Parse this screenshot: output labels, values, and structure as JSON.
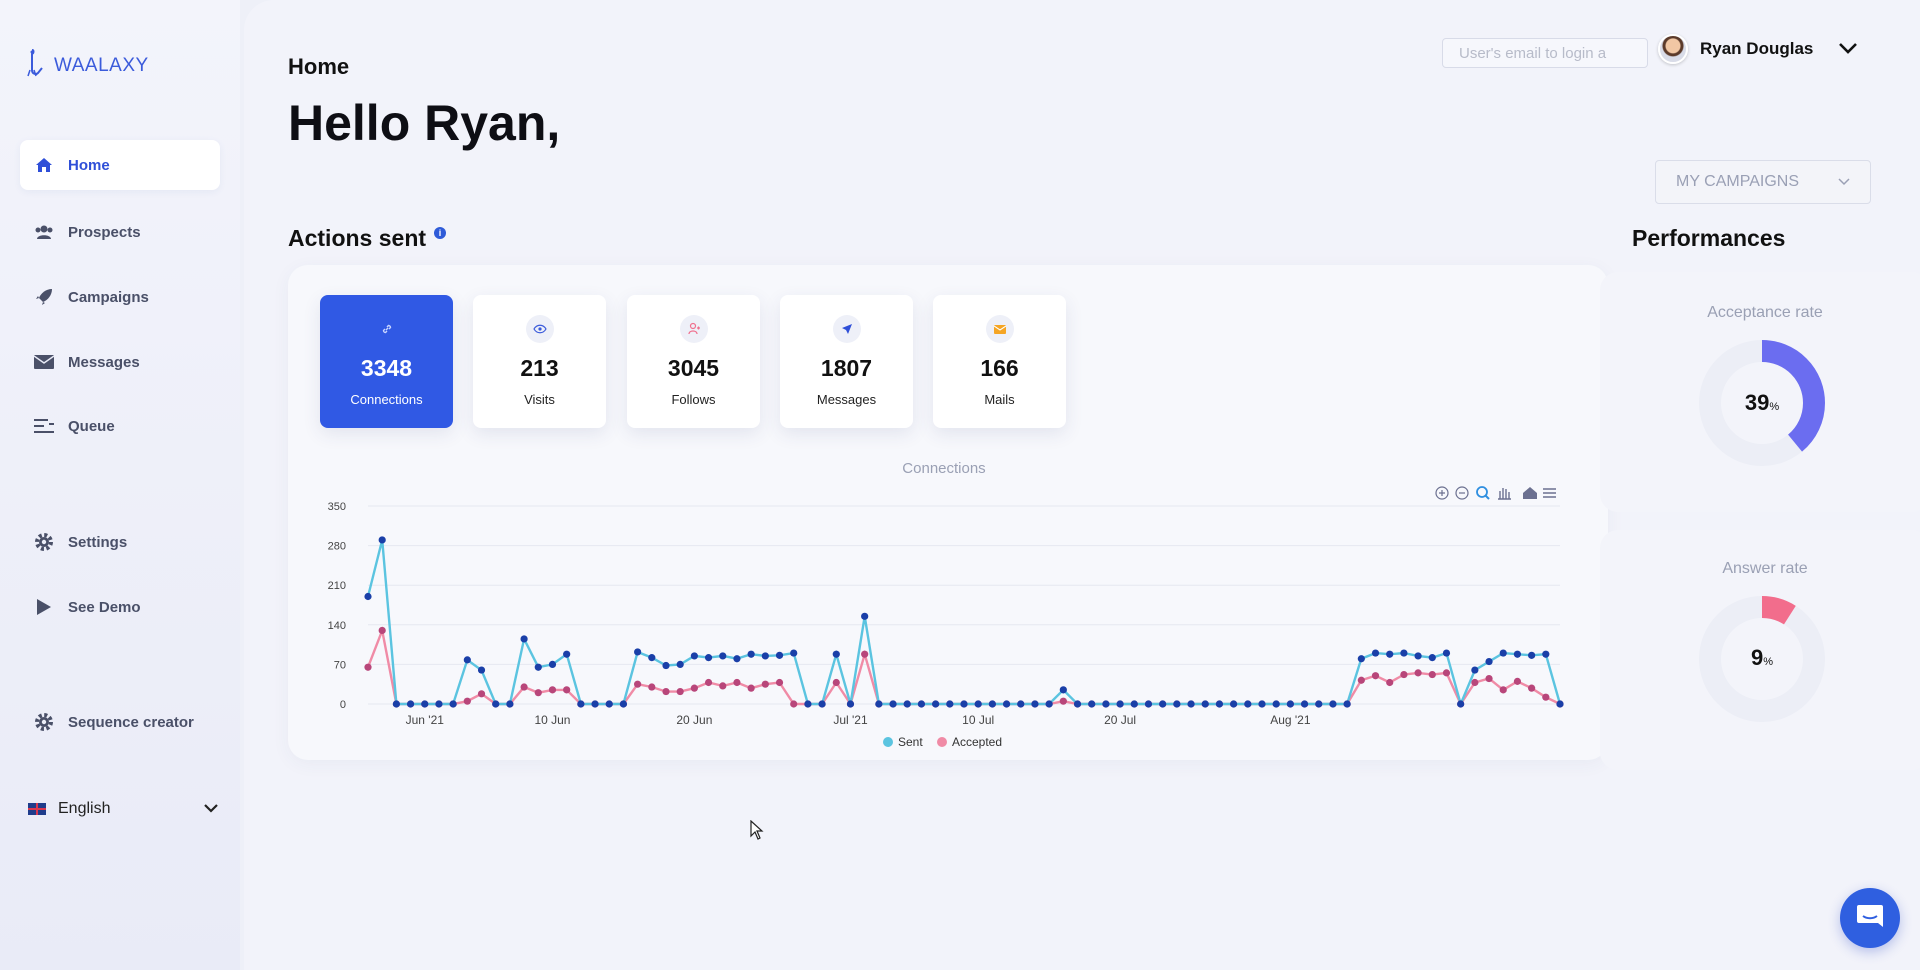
{
  "app": {
    "brand": "WAALAXY"
  },
  "sidebar": {
    "items": [
      {
        "label": "Home",
        "icon": "home-icon"
      },
      {
        "label": "Prospects",
        "icon": "users-icon"
      },
      {
        "label": "Campaigns",
        "icon": "rocket-icon"
      },
      {
        "label": "Messages",
        "icon": "envelope-icon"
      },
      {
        "label": "Queue",
        "icon": "queue-icon"
      },
      {
        "label": "Settings",
        "icon": "gear-icon"
      },
      {
        "label": "See Demo",
        "icon": "play-icon"
      },
      {
        "label": "Sequence creator",
        "icon": "gear-icon"
      }
    ],
    "language": "English"
  },
  "header": {
    "breadcrumb": "Home",
    "greeting": "Hello Ryan,",
    "email_placeholder": "User's email to login a",
    "user_name": "Ryan Douglas",
    "campaign_select": "MY CAMPAIGNS"
  },
  "actions": {
    "title": "Actions sent",
    "stats": [
      {
        "value": "3348",
        "label": "Connections",
        "icon": "link-icon"
      },
      {
        "value": "213",
        "label": "Visits",
        "icon": "eye-icon"
      },
      {
        "value": "3045",
        "label": "Follows",
        "icon": "follow-icon"
      },
      {
        "value": "1807",
        "label": "Messages",
        "icon": "send-icon"
      },
      {
        "value": "166",
        "label": "Mails",
        "icon": "mail-icon"
      }
    ]
  },
  "performances": {
    "title": "Performances",
    "acceptance_label": "Acceptance rate",
    "acceptance_value": "39",
    "answer_label": "Answer rate",
    "answer_value": "9",
    "percent_sign": "%"
  },
  "colors": {
    "accent": "#3059e4",
    "sent_line": "#5bc4e0",
    "sent_point": "#1a3fa8",
    "accepted_line": "#f08ba6",
    "accepted_point": "#b8467a",
    "acceptance_arc": "#6b6df0",
    "answer_arc": "#f26d8c"
  },
  "chart_data": {
    "type": "line",
    "title": "Connections",
    "xlabel": "",
    "ylabel": "",
    "ylim": [
      0,
      350
    ],
    "yticks": [
      0,
      70,
      140,
      210,
      280,
      350
    ],
    "xtick_labels": [
      "Jun '21",
      "10 Jun",
      "20 Jun",
      "Jul '21",
      "10 Jul",
      "20 Jul",
      "Aug '21"
    ],
    "xtick_index": [
      4,
      13,
      23,
      34,
      43,
      53,
      65
    ],
    "grid": true,
    "legend": "bottom",
    "series": [
      {
        "name": "Sent",
        "values": [
          190,
          290,
          0,
          0,
          0,
          0,
          0,
          78,
          60,
          0,
          0,
          115,
          65,
          70,
          88,
          0,
          0,
          0,
          0,
          92,
          82,
          68,
          70,
          85,
          82,
          85,
          80,
          88,
          85,
          86,
          90,
          0,
          0,
          88,
          0,
          155,
          0,
          0,
          0,
          0,
          0,
          0,
          0,
          0,
          0,
          0,
          0,
          0,
          0,
          25,
          0,
          0,
          0,
          0,
          0,
          0,
          0,
          0,
          0,
          0,
          0,
          0,
          0,
          0,
          0,
          0,
          0,
          0,
          0,
          0,
          80,
          90,
          88,
          90,
          85,
          82,
          90,
          0,
          60,
          75,
          90,
          88,
          86,
          88,
          0
        ]
      },
      {
        "name": "Accepted",
        "values": [
          65,
          130,
          0,
          0,
          0,
          0,
          0,
          5,
          18,
          0,
          0,
          30,
          20,
          25,
          25,
          0,
          0,
          0,
          0,
          35,
          30,
          22,
          22,
          28,
          38,
          32,
          38,
          28,
          35,
          38,
          0,
          0,
          0,
          38,
          0,
          88,
          0,
          0,
          0,
          0,
          0,
          0,
          0,
          0,
          0,
          0,
          0,
          0,
          0,
          5,
          0,
          0,
          0,
          0,
          0,
          0,
          0,
          0,
          0,
          0,
          0,
          0,
          0,
          0,
          0,
          0,
          0,
          0,
          0,
          0,
          42,
          50,
          38,
          52,
          55,
          52,
          55,
          0,
          38,
          45,
          25,
          40,
          28,
          12,
          0
        ]
      }
    ]
  }
}
